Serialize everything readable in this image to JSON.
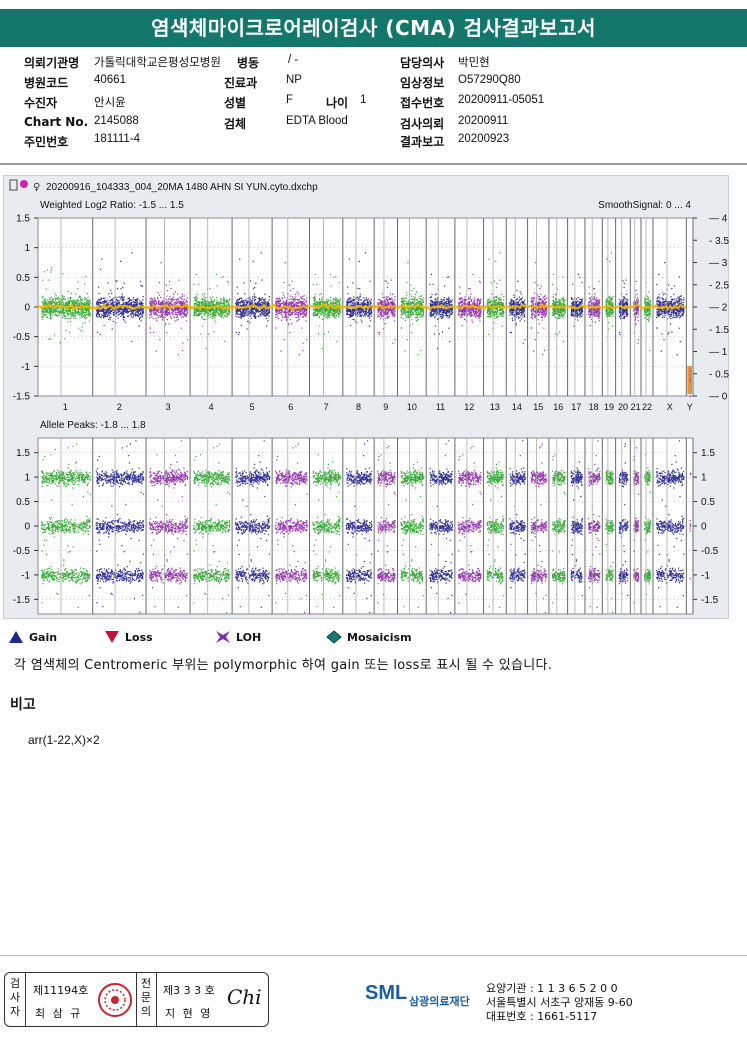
{
  "report": {
    "title": "염색체마이크로어레이검사 (CMA) 검사결과보고서"
  },
  "info": {
    "institution_label": "의뢰기관명",
    "institution_value": "가톨릭대학교은평성모병원",
    "ward_label": "병동",
    "ward_value": "/ -",
    "doctor_label": "담당의사",
    "doctor_value": "박민현",
    "hospital_code_label": "병원코드",
    "hospital_code_value": "40661",
    "department_label": "진료과",
    "department_value": "NP",
    "clinical_info_label": "임상정보",
    "clinical_info_value": "O57290Q80",
    "patient_label": "수진자",
    "patient_value": "안시윤",
    "sex_label": "성별",
    "sex_value": "F",
    "age_label": "나이",
    "age_value": "1",
    "receipt_no_label": "접수번호",
    "receipt_no_value": "20200911-05051",
    "chart_no_label": "Chart No.",
    "chart_no_value": "2145088",
    "specimen_label": "검체",
    "specimen_value": "EDTA Blood",
    "request_date_label": "검사의뢰",
    "request_date_value": "20200911",
    "id_label": "주민번호",
    "id_value": "181111-4",
    "report_date_label": "결과보고",
    "report_date_value": "20200923"
  },
  "chart_data": {
    "type": "scatter",
    "file_name": "20200916_104333_004_20MA 1480 AHN SI YUN.cyto.dxchp",
    "chromosomes": [
      "1",
      "2",
      "3",
      "4",
      "5",
      "6",
      "7",
      "8",
      "9",
      "10",
      "11",
      "12",
      "13",
      "14",
      "15",
      "16",
      "17",
      "18",
      "19",
      "20",
      "21",
      "22",
      "X",
      "Y"
    ],
    "chromosome_colors": [
      "#1fa21f",
      "#1a1a8c",
      "#8b1fa8"
    ],
    "panels": [
      {
        "title": "Weighted Log2 Ratio: -1.5 ... 1.5",
        "right_title": "SmoothSignal: 0 ... 4",
        "ylim": [
          -1.5,
          1.5
        ],
        "yticks": [
          "1.5",
          "1",
          "0.5",
          "0",
          "-0.5",
          "-1",
          "-1.5"
        ],
        "right_ylim": [
          0,
          4
        ],
        "right_ticks": [
          "4",
          "3.5",
          "3",
          "2.5",
          "2",
          "1.5",
          "1",
          "0.5",
          "0"
        ],
        "smooth_signal_color": "#f2b400",
        "smooth_signal_value": 2
      },
      {
        "title": "Allele Peaks: -1.8 ... 1.8",
        "ylim": [
          -1.8,
          1.8
        ],
        "yticks": [
          "1.5",
          "1",
          "0.5",
          "0",
          "-0.5",
          "-1",
          "-1.5"
        ],
        "right_ticks": [
          "1.5",
          "1",
          "0.5",
          "0",
          "-0.5",
          "-1",
          "-1.5"
        ],
        "bands": [
          1.0,
          0.0,
          -1.0
        ]
      }
    ]
  },
  "legend": [
    {
      "label": "Gain",
      "icon": "triangle-up-icon",
      "color": "#1a2b8c"
    },
    {
      "label": "Loss",
      "icon": "triangle-down-icon",
      "color": "#c0143c"
    },
    {
      "label": "LOH",
      "icon": "loh-star-icon",
      "color": "#7b2fa8"
    },
    {
      "label": "Mosaicism",
      "icon": "diamond-icon",
      "color": "#1a7a7a"
    }
  ],
  "note": "각 염색체의 Centromeric 부위는 polymorphic 하여 gain 또는 loss로 표시 될 수 있습니다.",
  "remark": {
    "heading": "비고",
    "value": "arr(1-22,X)×2"
  },
  "signatures": {
    "tester_label": "검사자",
    "tester_license": "제11194호",
    "tester_name": "최 삼 규",
    "specialist_label": "전문의",
    "specialist_license": "제3 3 3 호",
    "specialist_name": "지 현 영",
    "signature_mark": "Chi"
  },
  "footer": {
    "logo": "SML",
    "org_name": "삼광의료재단",
    "institution_code": "요양기관 : 1 1 3 6 5 2 0 0",
    "address": "서울특별시 서초구 양재동 9-60",
    "phone": "대표번호 : 1661-5117"
  }
}
